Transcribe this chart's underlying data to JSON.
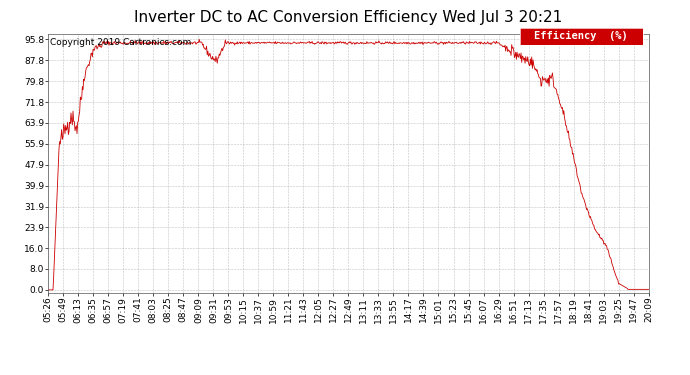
{
  "title": "Inverter DC to AC Conversion Efficiency Wed Jul 3 20:21",
  "copyright": "Copyright 2019 Cartronics.com",
  "legend_label": "Efficiency  (%)",
  "legend_bg": "#cc0000",
  "legend_fg": "#ffffff",
  "line_color": "#cc0000",
  "bg_color": "#ffffff",
  "plot_bg": "#ffffff",
  "grid_color": "#999999",
  "yticks": [
    0.0,
    8.0,
    16.0,
    23.9,
    31.9,
    39.9,
    47.9,
    55.9,
    63.9,
    71.8,
    79.8,
    87.8,
    95.8
  ],
  "ylim": [
    -1.0,
    98.0
  ],
  "xtick_labels": [
    "05:26",
    "05:49",
    "06:13",
    "06:35",
    "06:57",
    "07:19",
    "07:41",
    "08:03",
    "08:25",
    "08:47",
    "09:09",
    "09:31",
    "09:53",
    "10:15",
    "10:37",
    "10:59",
    "11:21",
    "11:43",
    "12:05",
    "12:27",
    "12:49",
    "13:11",
    "13:33",
    "13:55",
    "14:17",
    "14:39",
    "15:01",
    "15:23",
    "15:45",
    "16:07",
    "16:29",
    "16:51",
    "17:13",
    "17:35",
    "17:57",
    "18:19",
    "18:41",
    "19:03",
    "19:25",
    "19:47",
    "20:09"
  ],
  "title_fontsize": 11,
  "axis_fontsize": 6.5,
  "copyright_fontsize": 6.5
}
